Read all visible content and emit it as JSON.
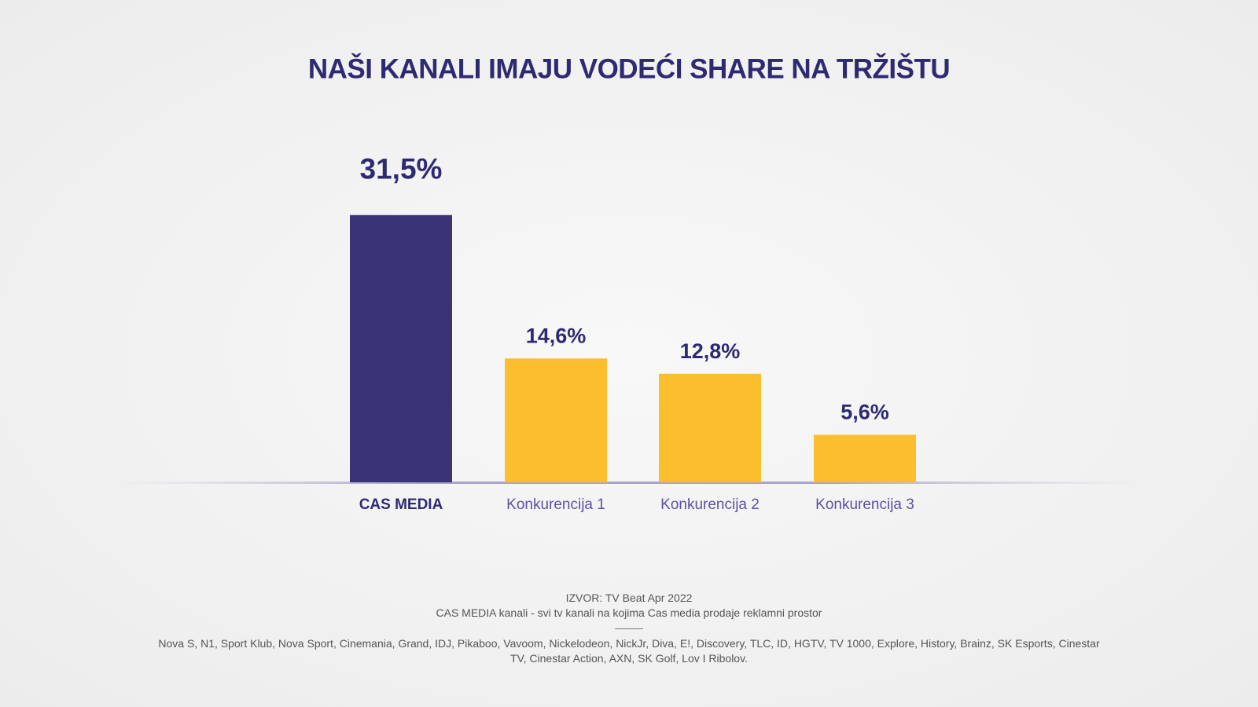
{
  "chart_data": {
    "type": "bar",
    "title": "NAŠI KANALI IMAJU VODEĆI SHARE NA TRŽIŠTU",
    "categories": [
      "CAS MEDIA",
      "Konkurencija 1",
      "Konkurencija 2",
      "Konkurencija 3"
    ],
    "values": [
      31.5,
      14.6,
      12.8,
      5.6
    ],
    "value_labels": [
      "31,5%",
      "14,6%",
      "12,8%",
      "5,6%"
    ],
    "colors": [
      "#3a3476",
      "#fbbf2d",
      "#fbbf2d",
      "#fbbf2d"
    ],
    "source": "IZVOR: TV Beat Apr 2022",
    "note": "CAS MEDIA kanali - svi tv kanali na kojima Cas media prodaje reklamni prostor",
    "channels": "Nova S, N1, Sport Klub, Nova Sport, Cinemania, Grand, IDJ, Pikaboo, Vavoom, Nickelodeon, NickJr, Diva, E!, Discovery,  TLC, ID, HGTV, TV 1000, Explore, History, Brainz, SK Esports, Cinestar TV, Cinestar Action, AXN, SK Golf, Lov I Ribolov."
  }
}
